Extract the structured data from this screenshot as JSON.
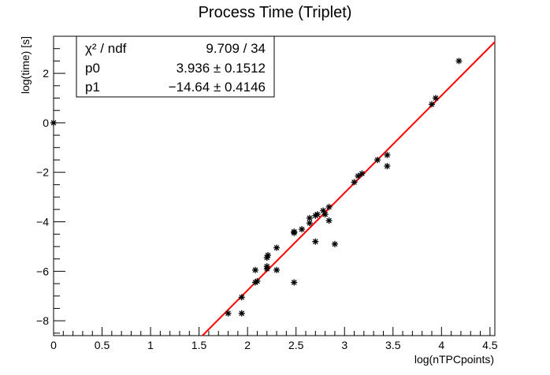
{
  "chart_data": {
    "type": "scatter",
    "title": "Process Time (Triplet)",
    "xlabel": "log(nTPCpoints)",
    "ylabel": "log(time) [s]",
    "xlim": [
      0,
      4.55
    ],
    "ylim": [
      -8.6,
      3.5
    ],
    "x_ticks": [
      0,
      0.5,
      1,
      1.5,
      2,
      2.5,
      3,
      3.5,
      4,
      4.5
    ],
    "x_tick_labels": [
      "0",
      "0.5",
      "1",
      "1.5",
      "2",
      "2.5",
      "3",
      "3.5",
      "4",
      "4.5"
    ],
    "y_ticks": [
      -8,
      -6,
      -4,
      -2,
      0,
      2
    ],
    "y_tick_labels": [
      "−8",
      "−6",
      "−4",
      "−2",
      "0",
      "2"
    ],
    "points": [
      {
        "x": 0.0,
        "y": 0.0
      },
      {
        "x": 1.8,
        "y": -7.7
      },
      {
        "x": 1.94,
        "y": -7.05
      },
      {
        "x": 1.94,
        "y": -7.7
      },
      {
        "x": 2.08,
        "y": -6.45
      },
      {
        "x": 2.08,
        "y": -5.95
      },
      {
        "x": 2.1,
        "y": -6.4
      },
      {
        "x": 2.2,
        "y": -5.9
      },
      {
        "x": 2.2,
        "y": -5.8
      },
      {
        "x": 2.2,
        "y": -5.45
      },
      {
        "x": 2.21,
        "y": -5.35
      },
      {
        "x": 2.3,
        "y": -5.05
      },
      {
        "x": 2.3,
        "y": -5.95
      },
      {
        "x": 2.48,
        "y": -4.45
      },
      {
        "x": 2.48,
        "y": -4.4
      },
      {
        "x": 2.48,
        "y": -6.45
      },
      {
        "x": 2.56,
        "y": -4.3
      },
      {
        "x": 2.64,
        "y": -3.85
      },
      {
        "x": 2.64,
        "y": -4.05
      },
      {
        "x": 2.7,
        "y": -3.75
      },
      {
        "x": 2.7,
        "y": -4.8
      },
      {
        "x": 2.72,
        "y": -3.7
      },
      {
        "x": 2.78,
        "y": -3.55
      },
      {
        "x": 2.8,
        "y": -3.7
      },
      {
        "x": 2.84,
        "y": -3.4
      },
      {
        "x": 2.84,
        "y": -3.95
      },
      {
        "x": 2.9,
        "y": -4.9
      },
      {
        "x": 3.1,
        "y": -2.4
      },
      {
        "x": 3.14,
        "y": -2.15
      },
      {
        "x": 3.18,
        "y": -2.05
      },
      {
        "x": 3.34,
        "y": -1.5
      },
      {
        "x": 3.44,
        "y": -1.3
      },
      {
        "x": 3.44,
        "y": -1.75
      },
      {
        "x": 3.9,
        "y": 0.75
      },
      {
        "x": 3.94,
        "y": 1.0
      },
      {
        "x": 4.18,
        "y": 2.5
      }
    ],
    "fit": {
      "p0": 3.936,
      "p1": -14.64,
      "color": "#ff0000"
    },
    "marker_color": "#000000",
    "stats": {
      "rows": [
        {
          "label": "χ² / ndf",
          "value": "9.709 / 34"
        },
        {
          "label": "p0",
          "value": "3.936 ± 0.1512"
        },
        {
          "label": "p1",
          "value": "−14.64 ± 0.4146"
        }
      ]
    }
  }
}
